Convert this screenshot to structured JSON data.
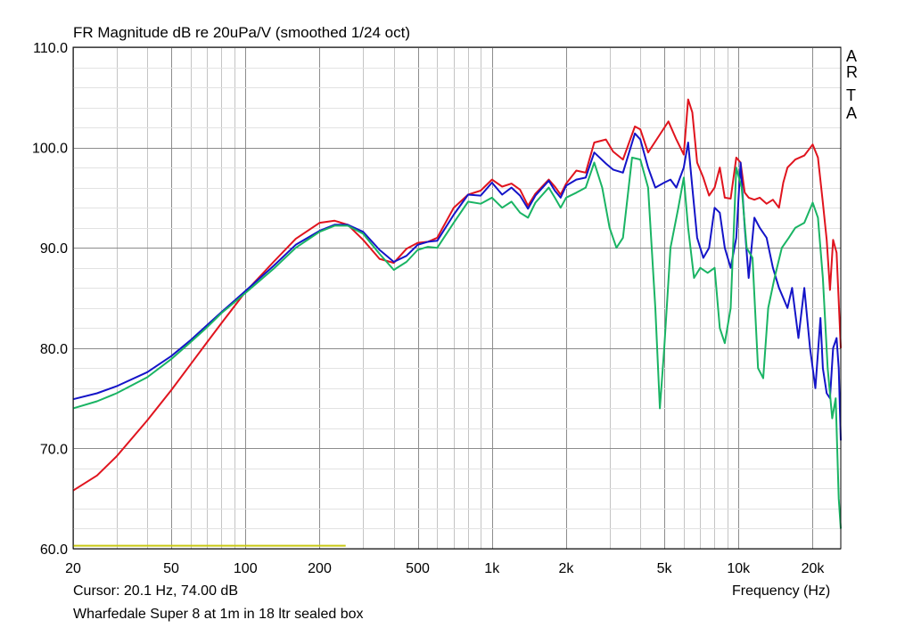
{
  "chart_data": {
    "type": "line",
    "title": "FR Magnitude dB re 20uPa/V (smoothed 1/24 oct)",
    "watermark": [
      "A",
      "R",
      "T",
      "A"
    ],
    "xlabel": "Frequency (Hz)",
    "x_scale": "log",
    "xlim": [
      20,
      26000
    ],
    "ylim": [
      60,
      110
    ],
    "x_ticks": [
      {
        "value": 20,
        "label": "20"
      },
      {
        "value": 50,
        "label": "50"
      },
      {
        "value": 100,
        "label": "100"
      },
      {
        "value": 200,
        "label": "200"
      },
      {
        "value": 500,
        "label": "500"
      },
      {
        "value": 1000,
        "label": "1k"
      },
      {
        "value": 2000,
        "label": "2k"
      },
      {
        "value": 5000,
        "label": "5k"
      },
      {
        "value": 10000,
        "label": "10k"
      },
      {
        "value": 20000,
        "label": "20k"
      }
    ],
    "y_ticks": [
      {
        "value": 60,
        "label": "60.0"
      },
      {
        "value": 70,
        "label": "70.0"
      },
      {
        "value": 80,
        "label": "80.0"
      },
      {
        "value": 90,
        "label": "90.0"
      },
      {
        "value": 100,
        "label": "100.0"
      },
      {
        "value": 110,
        "label": "110.0"
      }
    ],
    "grid": true,
    "cursor_text": "Cursor: 20.1 Hz, 74.00 dB",
    "caption": "Wharfedale Super 8 at 1m in 18 ltr sealed box",
    "series": [
      {
        "color": "#e0141e",
        "points": [
          [
            20,
            65.8
          ],
          [
            25,
            67.3
          ],
          [
            30,
            69.2
          ],
          [
            40,
            72.8
          ],
          [
            50,
            75.8
          ],
          [
            60,
            78.4
          ],
          [
            70,
            80.6
          ],
          [
            80,
            82.5
          ],
          [
            100,
            85.6
          ],
          [
            130,
            88.6
          ],
          [
            160,
            90.9
          ],
          [
            200,
            92.5
          ],
          [
            230,
            92.7
          ],
          [
            260,
            92.3
          ],
          [
            300,
            90.8
          ],
          [
            350,
            88.9
          ],
          [
            400,
            88.5
          ],
          [
            450,
            89.9
          ],
          [
            500,
            90.5
          ],
          [
            550,
            90.6
          ],
          [
            600,
            91.0
          ],
          [
            700,
            94.0
          ],
          [
            800,
            95.3
          ],
          [
            900,
            95.7
          ],
          [
            1000,
            96.8
          ],
          [
            1100,
            96.1
          ],
          [
            1200,
            96.4
          ],
          [
            1300,
            95.8
          ],
          [
            1400,
            94.2
          ],
          [
            1500,
            95.4
          ],
          [
            1700,
            96.8
          ],
          [
            1800,
            96.1
          ],
          [
            1900,
            95.3
          ],
          [
            2000,
            96.4
          ],
          [
            2200,
            97.7
          ],
          [
            2400,
            97.5
          ],
          [
            2600,
            100.5
          ],
          [
            2900,
            100.8
          ],
          [
            3100,
            99.6
          ],
          [
            3400,
            98.8
          ],
          [
            3800,
            102.1
          ],
          [
            4000,
            101.8
          ],
          [
            4300,
            99.5
          ],
          [
            4800,
            101.3
          ],
          [
            5200,
            102.6
          ],
          [
            5600,
            100.8
          ],
          [
            6000,
            99.3
          ],
          [
            6250,
            104.8
          ],
          [
            6500,
            103.5
          ],
          [
            6800,
            98.5
          ],
          [
            7200,
            97.0
          ],
          [
            7600,
            95.2
          ],
          [
            8000,
            96.0
          ],
          [
            8400,
            98.0
          ],
          [
            8800,
            95.0
          ],
          [
            9300,
            94.9
          ],
          [
            9800,
            99.0
          ],
          [
            10200,
            98.5
          ],
          [
            10600,
            95.5
          ],
          [
            11000,
            95.0
          ],
          [
            11600,
            94.8
          ],
          [
            12200,
            95.0
          ],
          [
            13000,
            94.4
          ],
          [
            13800,
            94.8
          ],
          [
            14600,
            94.0
          ],
          [
            15200,
            96.5
          ],
          [
            15800,
            98.0
          ],
          [
            17000,
            98.8
          ],
          [
            18500,
            99.2
          ],
          [
            20000,
            100.3
          ],
          [
            21000,
            99.0
          ],
          [
            22000,
            94.5
          ],
          [
            22800,
            90.8
          ],
          [
            23500,
            85.8
          ],
          [
            24200,
            90.8
          ],
          [
            25000,
            89.5
          ],
          [
            26000,
            80.0
          ]
        ]
      },
      {
        "color": "#1414c8",
        "points": [
          [
            20,
            74.9
          ],
          [
            25,
            75.5
          ],
          [
            30,
            76.2
          ],
          [
            40,
            77.6
          ],
          [
            50,
            79.2
          ],
          [
            60,
            80.8
          ],
          [
            70,
            82.3
          ],
          [
            80,
            83.6
          ],
          [
            100,
            85.7
          ],
          [
            130,
            88.2
          ],
          [
            160,
            90.3
          ],
          [
            200,
            91.7
          ],
          [
            230,
            92.3
          ],
          [
            260,
            92.3
          ],
          [
            300,
            91.6
          ],
          [
            350,
            89.8
          ],
          [
            400,
            88.6
          ],
          [
            450,
            89.2
          ],
          [
            500,
            90.3
          ],
          [
            550,
            90.6
          ],
          [
            600,
            90.7
          ],
          [
            700,
            93.3
          ],
          [
            800,
            95.3
          ],
          [
            900,
            95.2
          ],
          [
            1000,
            96.5
          ],
          [
            1100,
            95.3
          ],
          [
            1200,
            96.0
          ],
          [
            1300,
            95.2
          ],
          [
            1400,
            93.9
          ],
          [
            1500,
            95.2
          ],
          [
            1700,
            96.7
          ],
          [
            1800,
            95.7
          ],
          [
            1900,
            95.0
          ],
          [
            2000,
            96.2
          ],
          [
            2200,
            96.8
          ],
          [
            2400,
            97.0
          ],
          [
            2600,
            99.5
          ],
          [
            2900,
            98.4
          ],
          [
            3100,
            97.8
          ],
          [
            3400,
            97.5
          ],
          [
            3800,
            101.4
          ],
          [
            4000,
            100.8
          ],
          [
            4300,
            98.0
          ],
          [
            4600,
            96.0
          ],
          [
            5000,
            96.5
          ],
          [
            5300,
            96.8
          ],
          [
            5600,
            96.0
          ],
          [
            6000,
            98.0
          ],
          [
            6250,
            100.5
          ],
          [
            6500,
            96.0
          ],
          [
            6800,
            91.0
          ],
          [
            7200,
            89.0
          ],
          [
            7600,
            90.0
          ],
          [
            8000,
            94.0
          ],
          [
            8400,
            93.5
          ],
          [
            8800,
            90.0
          ],
          [
            9300,
            88.0
          ],
          [
            9800,
            91.0
          ],
          [
            10200,
            98.5
          ],
          [
            10600,
            92.0
          ],
          [
            11000,
            87.0
          ],
          [
            11600,
            93.0
          ],
          [
            12200,
            92.0
          ],
          [
            13000,
            91.0
          ],
          [
            13800,
            88.0
          ],
          [
            14600,
            86.0
          ],
          [
            15200,
            85.0
          ],
          [
            15800,
            84.0
          ],
          [
            16500,
            86.0
          ],
          [
            17500,
            81.0
          ],
          [
            18500,
            86.0
          ],
          [
            19500,
            80.0
          ],
          [
            20500,
            76.0
          ],
          [
            21500,
            83.0
          ],
          [
            22000,
            78.0
          ],
          [
            22800,
            75.5
          ],
          [
            23500,
            75.0
          ],
          [
            24200,
            80.0
          ],
          [
            25000,
            81.0
          ],
          [
            25500,
            78.0
          ],
          [
            26000,
            70.8
          ]
        ]
      },
      {
        "color": "#1ab464",
        "points": [
          [
            20,
            74.0
          ],
          [
            25,
            74.7
          ],
          [
            30,
            75.5
          ],
          [
            40,
            77.1
          ],
          [
            50,
            78.9
          ],
          [
            60,
            80.6
          ],
          [
            70,
            82.1
          ],
          [
            80,
            83.5
          ],
          [
            100,
            85.5
          ],
          [
            130,
            87.9
          ],
          [
            160,
            90.0
          ],
          [
            200,
            91.6
          ],
          [
            230,
            92.2
          ],
          [
            260,
            92.2
          ],
          [
            300,
            91.4
          ],
          [
            350,
            89.4
          ],
          [
            400,
            87.8
          ],
          [
            450,
            88.6
          ],
          [
            500,
            89.8
          ],
          [
            550,
            90.1
          ],
          [
            600,
            90.0
          ],
          [
            700,
            92.5
          ],
          [
            800,
            94.6
          ],
          [
            900,
            94.4
          ],
          [
            1000,
            95.0
          ],
          [
            1100,
            94.0
          ],
          [
            1200,
            94.6
          ],
          [
            1300,
            93.5
          ],
          [
            1400,
            93.0
          ],
          [
            1500,
            94.5
          ],
          [
            1700,
            96.0
          ],
          [
            1800,
            95.0
          ],
          [
            1900,
            94.0
          ],
          [
            2000,
            95.0
          ],
          [
            2200,
            95.5
          ],
          [
            2400,
            96.0
          ],
          [
            2600,
            98.5
          ],
          [
            2800,
            96.0
          ],
          [
            3000,
            92.0
          ],
          [
            3200,
            90.0
          ],
          [
            3400,
            91.0
          ],
          [
            3700,
            99.0
          ],
          [
            4000,
            98.8
          ],
          [
            4300,
            96.0
          ],
          [
            4600,
            84.0
          ],
          [
            4800,
            74.0
          ],
          [
            5000,
            80.0
          ],
          [
            5300,
            90.0
          ],
          [
            5700,
            94.0
          ],
          [
            6000,
            97.0
          ],
          [
            6250,
            92.0
          ],
          [
            6600,
            87.0
          ],
          [
            7000,
            88.0
          ],
          [
            7500,
            87.5
          ],
          [
            8000,
            88.0
          ],
          [
            8400,
            82.0
          ],
          [
            8800,
            80.5
          ],
          [
            9300,
            84.0
          ],
          [
            9800,
            98.0
          ],
          [
            10300,
            96.0
          ],
          [
            10800,
            90.0
          ],
          [
            11400,
            89.0
          ],
          [
            12000,
            78.0
          ],
          [
            12600,
            77.0
          ],
          [
            13200,
            84.0
          ],
          [
            14000,
            87.0
          ],
          [
            15000,
            90.0
          ],
          [
            16000,
            91.0
          ],
          [
            17000,
            92.0
          ],
          [
            18500,
            92.5
          ],
          [
            20000,
            94.5
          ],
          [
            21000,
            93.0
          ],
          [
            22000,
            87.0
          ],
          [
            23000,
            78.0
          ],
          [
            24000,
            73.0
          ],
          [
            24800,
            75.0
          ],
          [
            25500,
            65.0
          ],
          [
            26000,
            62.0
          ]
        ]
      },
      {
        "color": "#c8c814",
        "points": [
          [
            20,
            60.3
          ],
          [
            255,
            60.3
          ]
        ]
      }
    ]
  }
}
